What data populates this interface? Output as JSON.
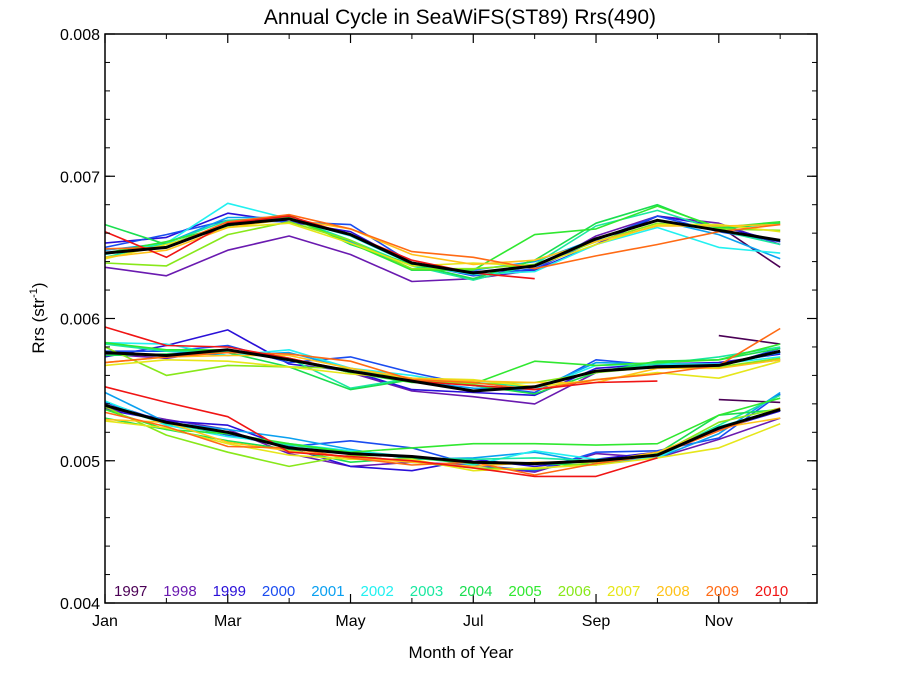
{
  "chart_data": {
    "type": "line",
    "title": "Annual Cycle in SeaWiFS(ST89) Rrs(490)",
    "xlabel": "Month of Year",
    "ylabel": "Rrs (str",
    "ylabel_sup": "-1",
    "ylabel_close": ")",
    "xlim": [
      1,
      12.6
    ],
    "ylim": [
      0.004,
      0.008
    ],
    "xticks": [
      {
        "value": 1,
        "label": "Jan"
      },
      {
        "value": 3,
        "label": "Mar"
      },
      {
        "value": 5,
        "label": "May"
      },
      {
        "value": 7,
        "label": "Jul"
      },
      {
        "value": 9,
        "label": "Sep"
      },
      {
        "value": 11,
        "label": "Nov"
      }
    ],
    "yticks": [
      {
        "value": 0.004,
        "label": "0.004"
      },
      {
        "value": 0.005,
        "label": "0.005"
      },
      {
        "value": 0.006,
        "label": "0.006"
      },
      {
        "value": 0.007,
        "label": "0.007"
      },
      {
        "value": 0.008,
        "label": "0.008"
      }
    ],
    "grid": false,
    "legend_position": "bottom",
    "x": [
      1,
      2,
      3,
      4,
      5,
      6,
      7,
      8,
      9,
      10,
      11,
      12
    ],
    "series": [
      {
        "name": "1997",
        "color": "#4b0055",
        "upper": [
          null,
          null,
          null,
          null,
          null,
          null,
          null,
          null,
          null,
          null,
          0.00665,
          0.00636
        ],
        "middle": [
          null,
          null,
          null,
          null,
          null,
          null,
          null,
          null,
          null,
          null,
          0.00588,
          0.00582
        ],
        "lower": [
          null,
          null,
          null,
          null,
          null,
          null,
          null,
          null,
          null,
          null,
          0.00543,
          0.00541
        ]
      },
      {
        "name": "1998",
        "color": "#6a1ab0",
        "upper": [
          0.00636,
          0.0063,
          0.00648,
          0.00658,
          0.00645,
          0.00626,
          0.00628,
          0.00634,
          0.00658,
          0.00672,
          0.00667,
          0.00652
        ],
        "middle": [
          0.00575,
          0.00572,
          0.00578,
          0.00572,
          0.00562,
          0.00549,
          0.00545,
          0.0054,
          0.00562,
          0.00568,
          0.00566,
          0.00571
        ],
        "lower": [
          0.00537,
          0.00529,
          0.00522,
          0.00505,
          0.00496,
          0.00499,
          0.00497,
          0.00492,
          0.00505,
          0.00502,
          0.00515,
          0.0053
        ]
      },
      {
        "name": "1999",
        "color": "#2a10d8",
        "upper": [
          0.00653,
          0.00657,
          0.00674,
          0.00668,
          0.00661,
          0.00638,
          0.00633,
          0.00634,
          0.00652,
          0.00672,
          0.00665,
          0.00654
        ],
        "middle": [
          0.00573,
          0.00581,
          0.00592,
          0.00568,
          0.00563,
          0.0055,
          0.00548,
          0.00546,
          0.00565,
          0.00568,
          0.00569,
          0.00575
        ],
        "lower": [
          0.00536,
          0.00528,
          0.00525,
          0.00509,
          0.00496,
          0.00493,
          0.00501,
          0.00496,
          0.00501,
          0.00506,
          0.00522,
          0.00535
        ]
      },
      {
        "name": "2000",
        "color": "#1a4cf0",
        "upper": [
          0.0065,
          0.00659,
          0.00669,
          0.00668,
          0.00666,
          0.00639,
          0.0063,
          0.00635,
          0.00655,
          0.00672,
          0.00661,
          0.00654
        ],
        "middle": [
          0.00577,
          0.00577,
          0.00581,
          0.00569,
          0.00573,
          0.00562,
          0.00553,
          0.00548,
          0.00571,
          0.00567,
          0.00566,
          0.00579
        ],
        "lower": [
          0.00541,
          0.00527,
          0.00518,
          0.0051,
          0.00514,
          0.00509,
          0.00497,
          0.00493,
          0.00506,
          0.00507,
          0.00516,
          0.00547
        ]
      },
      {
        "name": "2001",
        "color": "#0aa0f0",
        "upper": [
          0.00648,
          0.00653,
          0.00671,
          0.00671,
          0.00654,
          0.00634,
          0.00634,
          0.0064,
          0.00656,
          0.00669,
          0.00659,
          0.00642
        ],
        "middle": [
          0.00583,
          0.00577,
          0.00574,
          0.00576,
          0.00565,
          0.00556,
          0.00551,
          0.0055,
          0.00569,
          0.00568,
          0.00567,
          0.00576
        ],
        "lower": [
          0.00548,
          0.00527,
          0.00522,
          0.00516,
          0.00508,
          0.00501,
          0.00502,
          0.00506,
          0.00498,
          0.00502,
          0.00519,
          0.00548
        ]
      },
      {
        "name": "2002",
        "color": "#22f0f0",
        "upper": [
          0.00645,
          0.00653,
          0.00681,
          0.0067,
          0.00658,
          0.00638,
          0.00631,
          0.00633,
          0.00652,
          0.00664,
          0.0065,
          0.00646
        ],
        "middle": [
          0.00583,
          0.00582,
          0.00574,
          0.00578,
          0.00565,
          0.0056,
          0.00553,
          0.0055,
          0.00567,
          0.00568,
          0.00568,
          0.00573
        ],
        "lower": [
          0.00542,
          0.00525,
          0.00517,
          0.00512,
          0.00507,
          0.00503,
          0.00497,
          0.00507,
          0.00501,
          0.00502,
          0.00524,
          0.00536
        ]
      },
      {
        "name": "2003",
        "color": "#1ae8a0",
        "upper": [
          0.00643,
          0.00653,
          0.00669,
          0.00671,
          0.00655,
          0.00637,
          0.00627,
          0.00638,
          0.00665,
          0.00676,
          0.00662,
          0.00652
        ],
        "middle": [
          0.00582,
          0.00577,
          0.00577,
          0.00572,
          0.00551,
          0.00558,
          0.00555,
          0.00552,
          0.00563,
          0.00568,
          0.00573,
          0.0058
        ],
        "lower": [
          0.00539,
          0.00526,
          0.00519,
          0.00511,
          0.00506,
          0.00502,
          0.00501,
          0.00502,
          0.005,
          0.00504,
          0.00525,
          0.00546
        ]
      },
      {
        "name": "2004",
        "color": "#1ade50",
        "upper": [
          0.00666,
          0.00652,
          0.00665,
          0.00673,
          0.00652,
          0.00638,
          0.00628,
          0.00641,
          0.00667,
          0.0068,
          0.00663,
          0.00667
        ],
        "middle": [
          0.00574,
          0.00575,
          0.00576,
          0.00566,
          0.0055,
          0.00557,
          0.00553,
          0.00547,
          0.00562,
          0.0057,
          0.00571,
          0.00579
        ],
        "lower": [
          0.0053,
          0.00522,
          0.00514,
          0.00508,
          0.00499,
          0.00502,
          0.00498,
          0.00498,
          0.00497,
          0.00505,
          0.00532,
          0.00536
        ]
      },
      {
        "name": "2005",
        "color": "#30e830",
        "upper": [
          0.00646,
          0.00654,
          0.00665,
          0.00671,
          0.00653,
          0.00634,
          0.00634,
          0.00659,
          0.00663,
          0.00679,
          0.00664,
          0.00668
        ],
        "middle": [
          0.00583,
          0.00578,
          0.00578,
          0.00572,
          0.00562,
          0.00555,
          0.00554,
          0.0057,
          0.00567,
          0.00569,
          0.00571,
          0.00582
        ],
        "lower": [
          0.00536,
          0.00522,
          0.00519,
          0.00512,
          0.00506,
          0.00509,
          0.00512,
          0.00512,
          0.00511,
          0.00512,
          0.00532,
          0.00544
        ]
      },
      {
        "name": "2006",
        "color": "#88e81a",
        "upper": [
          0.00639,
          0.00637,
          0.00659,
          0.00668,
          0.00655,
          0.00635,
          0.00635,
          0.00638,
          0.00654,
          0.00667,
          0.00663,
          0.00662
        ],
        "middle": [
          0.0058,
          0.0056,
          0.00567,
          0.00566,
          0.00565,
          0.00557,
          0.00554,
          0.00555,
          0.00562,
          0.00566,
          0.00566,
          0.00572
        ],
        "lower": [
          0.00538,
          0.00518,
          0.00506,
          0.00496,
          0.00504,
          0.00499,
          0.00495,
          0.00494,
          0.00499,
          0.00504,
          0.00527,
          0.00537
        ]
      },
      {
        "name": "2007",
        "color": "#e6e61a",
        "upper": [
          0.00642,
          0.00652,
          0.00664,
          0.00667,
          0.00653,
          0.00637,
          0.00639,
          0.00637,
          0.00652,
          0.00666,
          0.00666,
          0.00661
        ],
        "middle": [
          0.00567,
          0.00571,
          0.0057,
          0.00566,
          0.00561,
          0.00558,
          0.00557,
          0.00552,
          0.00557,
          0.00562,
          0.00558,
          0.0057
        ],
        "lower": [
          0.00528,
          0.00523,
          0.00512,
          0.00504,
          0.00501,
          0.00501,
          0.00493,
          0.00495,
          0.00497,
          0.00502,
          0.00509,
          0.00526
        ]
      },
      {
        "name": "2008",
        "color": "#ffc21a",
        "upper": [
          0.00643,
          0.00648,
          0.00664,
          0.0067,
          0.00663,
          0.00645,
          0.00638,
          0.00641,
          0.00654,
          0.00665,
          0.00665,
          0.00666
        ],
        "middle": [
          0.00569,
          0.00573,
          0.00574,
          0.00574,
          0.00565,
          0.00558,
          0.00556,
          0.00555,
          0.00555,
          0.00565,
          0.00565,
          0.00571
        ],
        "lower": [
          0.00529,
          0.00527,
          0.00513,
          0.00507,
          0.00502,
          0.00499,
          0.00496,
          0.00499,
          0.00499,
          0.00506,
          0.00523,
          0.0053
        ]
      },
      {
        "name": "2009",
        "color": "#ff6a14",
        "upper": [
          0.00649,
          0.0065,
          0.00668,
          0.00673,
          0.00663,
          0.00647,
          0.00643,
          0.00635,
          0.00644,
          0.00652,
          0.00661,
          0.00666
        ],
        "middle": [
          0.00569,
          0.00573,
          0.00576,
          0.00575,
          0.0057,
          0.00557,
          0.00555,
          0.0055,
          0.00557,
          0.00561,
          0.00567,
          0.00593
        ],
        "lower": [
          0.00534,
          0.00524,
          0.0051,
          0.00509,
          0.00502,
          0.00497,
          0.00499,
          0.0049,
          0.00498,
          0.00504,
          0.00521,
          0.00537
        ]
      },
      {
        "name": "2010",
        "color": "#f01414",
        "upper": [
          0.00661,
          0.00643,
          0.00667,
          0.00672,
          0.00659,
          0.00641,
          0.00632,
          0.00628,
          null,
          null,
          null,
          null
        ],
        "middle": [
          0.00594,
          0.00581,
          0.0058,
          0.00572,
          0.00563,
          0.00556,
          0.00553,
          0.0055,
          0.00555,
          0.00556,
          null,
          null
        ],
        "lower": [
          0.00552,
          0.00541,
          0.00531,
          0.00506,
          0.00503,
          0.005,
          0.00495,
          0.00489,
          0.00489,
          0.00502,
          null,
          null
        ]
      }
    ],
    "mean": {
      "color": "#000000",
      "upper": [
        0.00646,
        0.0065,
        0.00666,
        0.0067,
        0.00659,
        0.00639,
        0.00632,
        0.00637,
        0.00656,
        0.00669,
        0.00662,
        0.00655
      ],
      "middle": [
        0.00576,
        0.00574,
        0.00578,
        0.00571,
        0.00563,
        0.00556,
        0.00549,
        0.00552,
        0.00563,
        0.00566,
        0.00567,
        0.00577
      ],
      "lower": [
        0.00539,
        0.00527,
        0.0052,
        0.00509,
        0.00505,
        0.00503,
        0.00499,
        0.00498,
        0.005,
        0.00504,
        0.00523,
        0.00536
      ]
    }
  }
}
